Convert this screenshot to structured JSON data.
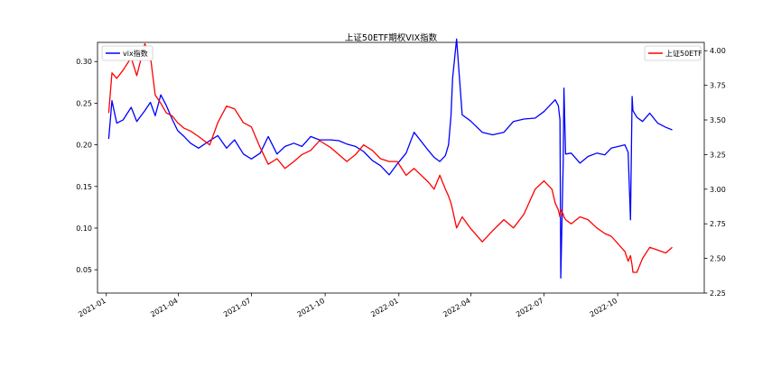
{
  "chart_data": {
    "type": "line",
    "title": "上证50ETF期权VIX指数",
    "x_tick_labels": [
      "2021-01",
      "2021-04",
      "2021-07",
      "2021-10",
      "2022-01",
      "2022-04",
      "2022-07",
      "2022-10"
    ],
    "x_ticks": [
      "2021-01-01",
      "2021-04-01",
      "2021-07-01",
      "2021-10-01",
      "2022-01-01",
      "2022-04-01",
      "2022-07-01",
      "2022-10-01"
    ],
    "xlim": [
      "2020-12-21",
      "2023-01-17"
    ],
    "ylim_left": [
      0.022,
      0.323
    ],
    "ylim_right": [
      2.25,
      4.06
    ],
    "y_ticks_left": [
      0.05,
      0.1,
      0.15,
      0.2,
      0.25,
      0.3
    ],
    "y_tick_labels_left": [
      "0.05",
      "0.10",
      "0.15",
      "0.20",
      "0.25",
      "0.30"
    ],
    "y_ticks_right": [
      2.25,
      2.5,
      2.75,
      3.0,
      3.25,
      3.5,
      3.75,
      4.0
    ],
    "y_tick_labels_right": [
      "2.25",
      "2.50",
      "2.75",
      "3.00",
      "3.25",
      "3.50",
      "3.75",
      "4.00"
    ],
    "grid": false,
    "series": [
      {
        "name": "vix指数",
        "axis": "left",
        "color": "#0000ff",
        "legend_position": "top-left",
        "x": [
          "2021-01-04",
          "2021-01-08",
          "2021-01-14",
          "2021-01-22",
          "2021-02-01",
          "2021-02-08",
          "2021-02-18",
          "2021-02-25",
          "2021-03-03",
          "2021-03-10",
          "2021-03-17",
          "2021-03-24",
          "2021-03-31",
          "2021-04-08",
          "2021-04-16",
          "2021-04-26",
          "2021-05-10",
          "2021-05-20",
          "2021-05-31",
          "2021-06-10",
          "2021-06-21",
          "2021-07-01",
          "2021-07-12",
          "2021-07-22",
          "2021-08-02",
          "2021-08-12",
          "2021-08-23",
          "2021-09-02",
          "2021-09-13",
          "2021-09-24",
          "2021-10-08",
          "2021-10-18",
          "2021-10-28",
          "2021-11-08",
          "2021-11-18",
          "2021-11-29",
          "2021-12-09",
          "2021-12-20",
          "2021-12-30",
          "2022-01-10",
          "2022-01-20",
          "2022-02-07",
          "2022-02-14",
          "2022-02-21",
          "2022-02-28",
          "2022-03-04",
          "2022-03-07",
          "2022-03-09",
          "2022-03-14",
          "2022-03-21",
          "2022-03-31",
          "2022-04-15",
          "2022-04-28",
          "2022-05-12",
          "2022-05-24",
          "2022-06-06",
          "2022-06-20",
          "2022-07-01",
          "2022-07-11",
          "2022-07-15",
          "2022-07-19",
          "2022-07-21",
          "2022-07-22",
          "2022-07-25",
          "2022-07-26",
          "2022-07-28",
          "2022-08-04",
          "2022-08-15",
          "2022-08-25",
          "2022-09-05",
          "2022-09-15",
          "2022-09-23",
          "2022-10-10",
          "2022-10-14",
          "2022-10-17",
          "2022-10-19",
          "2022-10-20",
          "2022-10-25",
          "2022-11-01",
          "2022-11-10",
          "2022-11-20",
          "2022-11-30",
          "2022-12-08"
        ],
        "values": [
          0.207,
          0.253,
          0.226,
          0.23,
          0.245,
          0.228,
          0.241,
          0.251,
          0.235,
          0.26,
          0.247,
          0.231,
          0.217,
          0.21,
          0.202,
          0.196,
          0.205,
          0.211,
          0.196,
          0.206,
          0.189,
          0.183,
          0.19,
          0.21,
          0.189,
          0.198,
          0.202,
          0.198,
          0.21,
          0.206,
          0.206,
          0.205,
          0.201,
          0.198,
          0.192,
          0.181,
          0.175,
          0.164,
          0.177,
          0.19,
          0.215,
          0.193,
          0.185,
          0.18,
          0.187,
          0.2,
          0.235,
          0.28,
          0.327,
          0.236,
          0.229,
          0.215,
          0.212,
          0.215,
          0.228,
          0.231,
          0.232,
          0.24,
          0.25,
          0.254,
          0.247,
          0.23,
          0.04,
          0.18,
          0.268,
          0.189,
          0.19,
          0.178,
          0.186,
          0.19,
          0.188,
          0.196,
          0.2,
          0.191,
          0.11,
          0.258,
          0.241,
          0.233,
          0.228,
          0.238,
          0.226,
          0.221,
          0.218
        ]
      },
      {
        "name": "上证50ETF",
        "axis": "right",
        "color": "#ff0000",
        "legend_position": "top-right",
        "x": [
          "2021-01-04",
          "2021-01-08",
          "2021-01-14",
          "2021-01-22",
          "2021-02-01",
          "2021-02-08",
          "2021-02-18",
          "2021-02-25",
          "2021-03-03",
          "2021-03-10",
          "2021-03-17",
          "2021-03-24",
          "2021-03-31",
          "2021-04-08",
          "2021-04-16",
          "2021-04-26",
          "2021-05-10",
          "2021-05-20",
          "2021-05-31",
          "2021-06-10",
          "2021-06-21",
          "2021-07-01",
          "2021-07-12",
          "2021-07-22",
          "2021-08-02",
          "2021-08-12",
          "2021-08-23",
          "2021-09-02",
          "2021-09-13",
          "2021-09-24",
          "2021-10-08",
          "2021-10-18",
          "2021-10-28",
          "2021-11-08",
          "2021-11-18",
          "2021-11-29",
          "2021-12-09",
          "2021-12-20",
          "2021-12-30",
          "2022-01-10",
          "2022-01-20",
          "2022-02-07",
          "2022-02-14",
          "2022-02-21",
          "2022-02-28",
          "2022-03-04",
          "2022-03-07",
          "2022-03-09",
          "2022-03-14",
          "2022-03-21",
          "2022-03-31",
          "2022-04-15",
          "2022-04-28",
          "2022-05-12",
          "2022-05-24",
          "2022-06-06",
          "2022-06-20",
          "2022-07-01",
          "2022-07-11",
          "2022-07-15",
          "2022-07-19",
          "2022-07-21",
          "2022-07-22",
          "2022-07-25",
          "2022-07-26",
          "2022-07-28",
          "2022-08-04",
          "2022-08-15",
          "2022-08-25",
          "2022-09-05",
          "2022-09-15",
          "2022-09-23",
          "2022-10-10",
          "2022-10-14",
          "2022-10-17",
          "2022-10-19",
          "2022-10-20",
          "2022-10-25",
          "2022-11-01",
          "2022-11-10",
          "2022-11-20",
          "2022-11-30",
          "2022-12-08"
        ],
        "values": [
          3.55,
          3.84,
          3.8,
          3.86,
          3.95,
          3.82,
          4.05,
          3.96,
          3.68,
          3.62,
          3.55,
          3.53,
          3.48,
          3.44,
          3.42,
          3.38,
          3.32,
          3.48,
          3.6,
          3.58,
          3.48,
          3.45,
          3.3,
          3.18,
          3.22,
          3.15,
          3.2,
          3.25,
          3.28,
          3.35,
          3.3,
          3.25,
          3.2,
          3.25,
          3.32,
          3.28,
          3.22,
          3.2,
          3.2,
          3.1,
          3.15,
          3.05,
          3.0,
          3.1,
          3.0,
          2.95,
          2.9,
          2.85,
          2.72,
          2.8,
          2.72,
          2.62,
          2.7,
          2.78,
          2.72,
          2.82,
          3.0,
          3.06,
          3.0,
          2.9,
          2.85,
          2.8,
          2.85,
          2.82,
          2.8,
          2.78,
          2.75,
          2.8,
          2.78,
          2.72,
          2.68,
          2.66,
          2.55,
          2.48,
          2.52,
          2.45,
          2.4,
          2.4,
          2.5,
          2.58,
          2.56,
          2.54,
          2.58
        ]
      }
    ]
  }
}
